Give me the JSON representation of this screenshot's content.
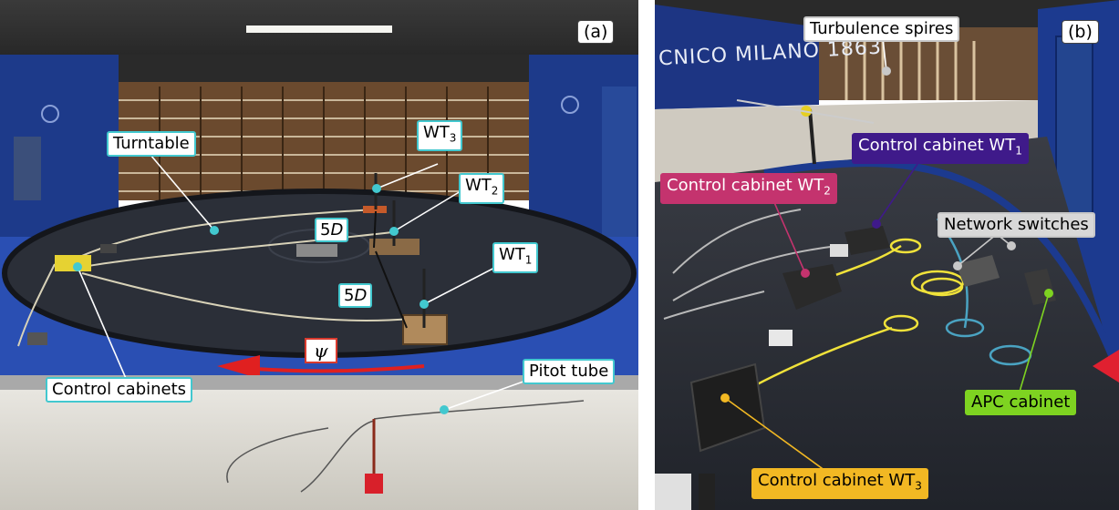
{
  "panel_a": {
    "tag": "(a)",
    "labels": {
      "turntable": "Turntable",
      "wt3": "WT",
      "wt3_sub": "3",
      "wt2": "WT",
      "wt2_sub": "2",
      "wt1": "WT",
      "wt1_sub": "1",
      "spacing_1": "5",
      "spacing_2": "5",
      "spacing_unit": "D",
      "yaw_symbol": "ψ",
      "pitot": "Pitot tube",
      "control_cabinets": "Control cabinets"
    }
  },
  "panel_b": {
    "tag": "(b)",
    "wall_text": "CNICO MILANO 1863",
    "labels": {
      "spires": "Turbulence spires",
      "cc_wt1": "Control cabinet WT",
      "cc_wt1_sub": "1",
      "cc_wt2": "Control cabinet WT",
      "cc_wt2_sub": "2",
      "network": "Network switches",
      "apc": "APC cabinet",
      "cc_wt3": "Control cabinet WT",
      "cc_wt3_sub": "3"
    }
  },
  "colors": {
    "cyan": "#42c8cf",
    "red": "#e02020",
    "wt1_purple": "#3f1a8a",
    "wt2_magenta": "#c4336e",
    "apc_green": "#7ed321",
    "wt3_orange": "#f2b823",
    "network_grey": "#c8c8c8"
  }
}
